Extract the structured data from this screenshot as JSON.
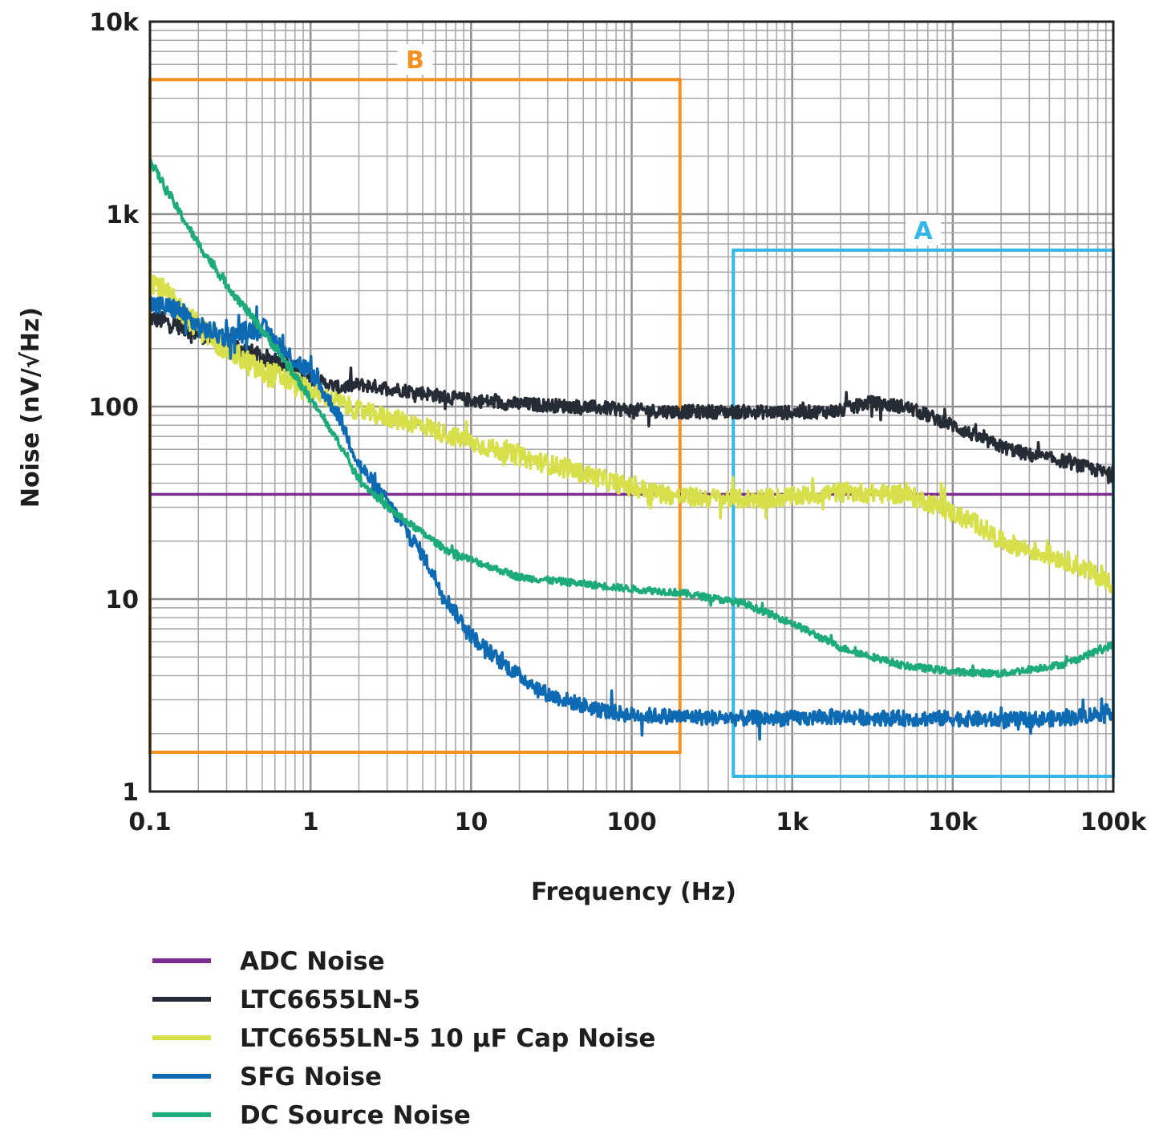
{
  "chart_data": {
    "type": "line",
    "x_scale": "log",
    "y_scale": "log",
    "xlabel": "Frequency (Hz)",
    "ylabel": "Noise (nV/√Hz)",
    "xlim": [
      0.1,
      100000
    ],
    "ylim": [
      1,
      10000
    ],
    "grid": true,
    "x_ticks": [
      {
        "value": 0.1,
        "label": "0.1"
      },
      {
        "value": 1,
        "label": "1"
      },
      {
        "value": 10,
        "label": "10"
      },
      {
        "value": 100,
        "label": "100"
      },
      {
        "value": 1000,
        "label": "1k"
      },
      {
        "value": 10000,
        "label": "10k"
      },
      {
        "value": 100000,
        "label": "100k"
      }
    ],
    "y_ticks": [
      {
        "value": 1,
        "label": "1"
      },
      {
        "value": 10,
        "label": "10"
      },
      {
        "value": 100,
        "label": "100"
      },
      {
        "value": 1000,
        "label": "1k"
      },
      {
        "value": 10000,
        "label": "10k"
      }
    ],
    "legend_position": "bottom",
    "series": [
      {
        "name": "ADC Noise",
        "color": "#7b2d90",
        "x": [
          0.1,
          100000
        ],
        "y": [
          35,
          35
        ]
      },
      {
        "name": "LTC6655LN-5",
        "color": "#262c36",
        "x": [
          0.1,
          0.15,
          0.2,
          0.3,
          0.5,
          0.7,
          1,
          1.5,
          2,
          3,
          5,
          7,
          10,
          20,
          50,
          100,
          200,
          500,
          1000,
          2000,
          3000,
          5000,
          7000,
          10000,
          15000,
          20000,
          30000,
          50000,
          70000,
          100000
        ],
        "y": [
          290,
          265,
          240,
          215,
          180,
          170,
          140,
          125,
          130,
          125,
          118,
          112,
          108,
          103,
          100,
          96,
          94,
          94,
          93,
          95,
          105,
          100,
          90,
          80,
          68,
          62,
          56,
          52,
          48,
          44
        ]
      },
      {
        "name": "LTC6655LN-5 10 µF Cap Noise",
        "color": "#d7e04a",
        "x": [
          0.1,
          0.15,
          0.2,
          0.3,
          0.5,
          0.7,
          1,
          1.5,
          2,
          3,
          5,
          7,
          10,
          20,
          50,
          100,
          200,
          500,
          1000,
          2000,
          5000,
          7000,
          10000,
          15000,
          20000,
          30000,
          50000,
          70000,
          100000
        ],
        "y": [
          470,
          330,
          260,
          200,
          150,
          140,
          120,
          105,
          95,
          88,
          80,
          72,
          65,
          55,
          45,
          38,
          34,
          33,
          34,
          36,
          35,
          32,
          28,
          24,
          20,
          18,
          16,
          14,
          12
        ]
      },
      {
        "name": "SFG Noise",
        "color": "#0f6ab4",
        "x": [
          0.1,
          0.15,
          0.2,
          0.3,
          0.5,
          0.7,
          1,
          1.5,
          2,
          3,
          5,
          7,
          10,
          15,
          20,
          30,
          50,
          70,
          100,
          200,
          500,
          1000,
          2000,
          5000,
          10000,
          20000,
          50000,
          100000
        ],
        "y": [
          340,
          320,
          260,
          230,
          260,
          190,
          150,
          90,
          50,
          32,
          17,
          10,
          6.5,
          4.8,
          4.0,
          3.2,
          2.8,
          2.6,
          2.5,
          2.45,
          2.4,
          2.4,
          2.45,
          2.4,
          2.4,
          2.35,
          2.4,
          2.6
        ]
      },
      {
        "name": "DC Source Noise",
        "color": "#1eab7b",
        "x": [
          0.1,
          0.15,
          0.2,
          0.3,
          0.5,
          0.7,
          1,
          1.5,
          2,
          3,
          5,
          7,
          10,
          20,
          50,
          100,
          200,
          500,
          1000,
          2000,
          5000,
          10000,
          20000,
          50000,
          100000
        ],
        "y": [
          1900,
          1050,
          700,
          430,
          250,
          170,
          110,
          65,
          42,
          30,
          22,
          18,
          16,
          13,
          12,
          11.3,
          10.8,
          9.5,
          7.5,
          5.6,
          4.5,
          4.2,
          4.1,
          4.6,
          5.8
        ]
      }
    ],
    "regions": [
      {
        "label": "B",
        "color": "#f59120",
        "x": [
          0.1,
          200
        ],
        "y": [
          1.6,
          5000
        ]
      },
      {
        "label": "A",
        "color": "#33b7e9",
        "x": [
          430,
          100000
        ],
        "y": [
          1.2,
          650
        ]
      }
    ]
  }
}
